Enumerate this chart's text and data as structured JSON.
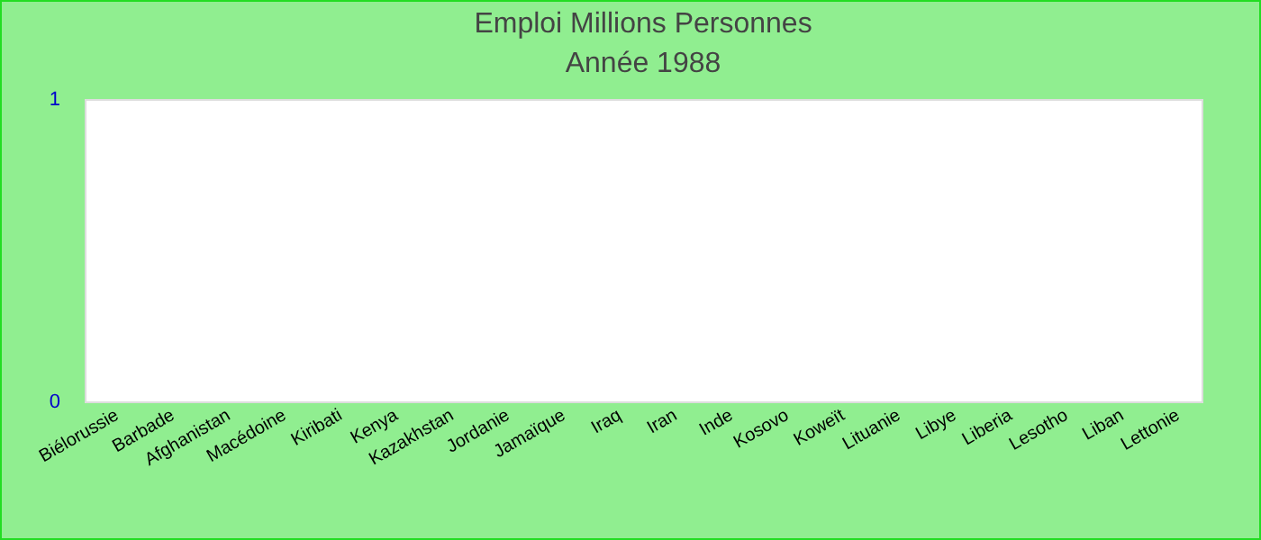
{
  "chart_data": {
    "type": "bar",
    "title": "Emploi Millions Personnes",
    "subtitle": "Année 1988",
    "categories": [
      "Biélorussie",
      "Barbade",
      "Afghanistan",
      "Macédoine",
      "Kiribati",
      "Kenya",
      "Kazakhstan",
      "Jordanie",
      "Jamaïque",
      "Iraq",
      "Iran",
      "Inde",
      "Kosovo",
      "Koweït",
      "Lituanie",
      "Libye",
      "Liberia",
      "Lesotho",
      "Liban",
      "Lettonie"
    ],
    "values": [
      null,
      null,
      null,
      null,
      null,
      null,
      null,
      null,
      null,
      null,
      null,
      null,
      null,
      null,
      null,
      null,
      null,
      null,
      null,
      null
    ],
    "ylim": [
      0,
      1
    ],
    "yticks": [
      0,
      1
    ],
    "grid": false
  }
}
